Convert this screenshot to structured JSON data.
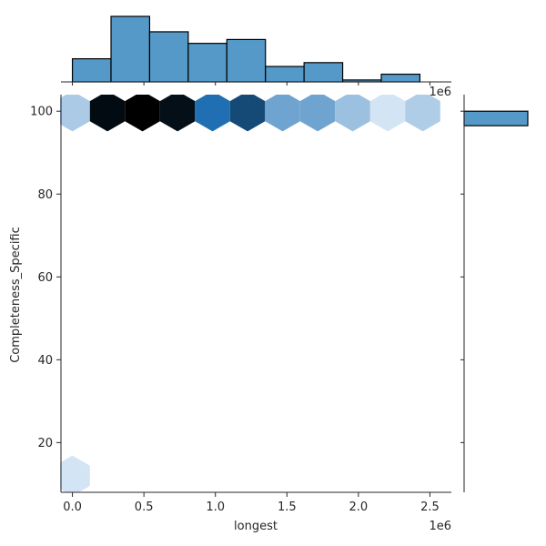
{
  "chart_data": {
    "type": "hexbin-joint",
    "xlabel": "longest",
    "ylabel": "Completeness_Specific",
    "x_offset_text": "1e6",
    "top_offset_text": "1e6",
    "xlim": [
      -80000,
      2650000
    ],
    "ylim": [
      8,
      104
    ],
    "xticks": [
      0,
      500000,
      1000000,
      1500000,
      2000000,
      2500000
    ],
    "xtick_labels": [
      "0.0",
      "0.5",
      "1.0",
      "1.5",
      "2.0",
      "2.5"
    ],
    "yticks": [
      20,
      40,
      60,
      80,
      100
    ],
    "ytick_labels": [
      "20",
      "40",
      "60",
      "80",
      "100"
    ],
    "hexbins": [
      {
        "x": 0,
        "y": 100,
        "density": 0.22
      },
      {
        "x": 245000,
        "y": 100,
        "density": 0.97
      },
      {
        "x": 490000,
        "y": 100,
        "density": 1.0
      },
      {
        "x": 735000,
        "y": 100,
        "density": 0.96
      },
      {
        "x": 980000,
        "y": 100,
        "density": 0.7
      },
      {
        "x": 1225000,
        "y": 100,
        "density": 0.8
      },
      {
        "x": 1470000,
        "y": 100,
        "density": 0.42
      },
      {
        "x": 1715000,
        "y": 100,
        "density": 0.42
      },
      {
        "x": 1960000,
        "y": 100,
        "density": 0.27
      },
      {
        "x": 2205000,
        "y": 100,
        "density": 0.08
      },
      {
        "x": 2450000,
        "y": 100,
        "density": 0.2
      },
      {
        "x": 0,
        "y": 12,
        "density": 0.08
      }
    ],
    "x_histogram": {
      "bin_edges": [
        0,
        270000,
        540000,
        810000,
        1080000,
        1350000,
        1620000,
        1890000,
        2160000,
        2430000,
        2700000
      ],
      "counts": [
        6,
        17,
        13,
        10,
        11,
        4,
        5,
        0.5,
        2,
        0
      ]
    },
    "y_histogram": {
      "bins": [
        {
          "from": 96.5,
          "to": 100,
          "count": 1
        }
      ]
    },
    "colors": {
      "bar_fill": "#5499c7",
      "bar_edge": "#000000",
      "axis": "#262626",
      "hex_light": "#eaf3fc",
      "hex_mid": "#1f6fb2",
      "hex_dark": "#000000"
    }
  }
}
